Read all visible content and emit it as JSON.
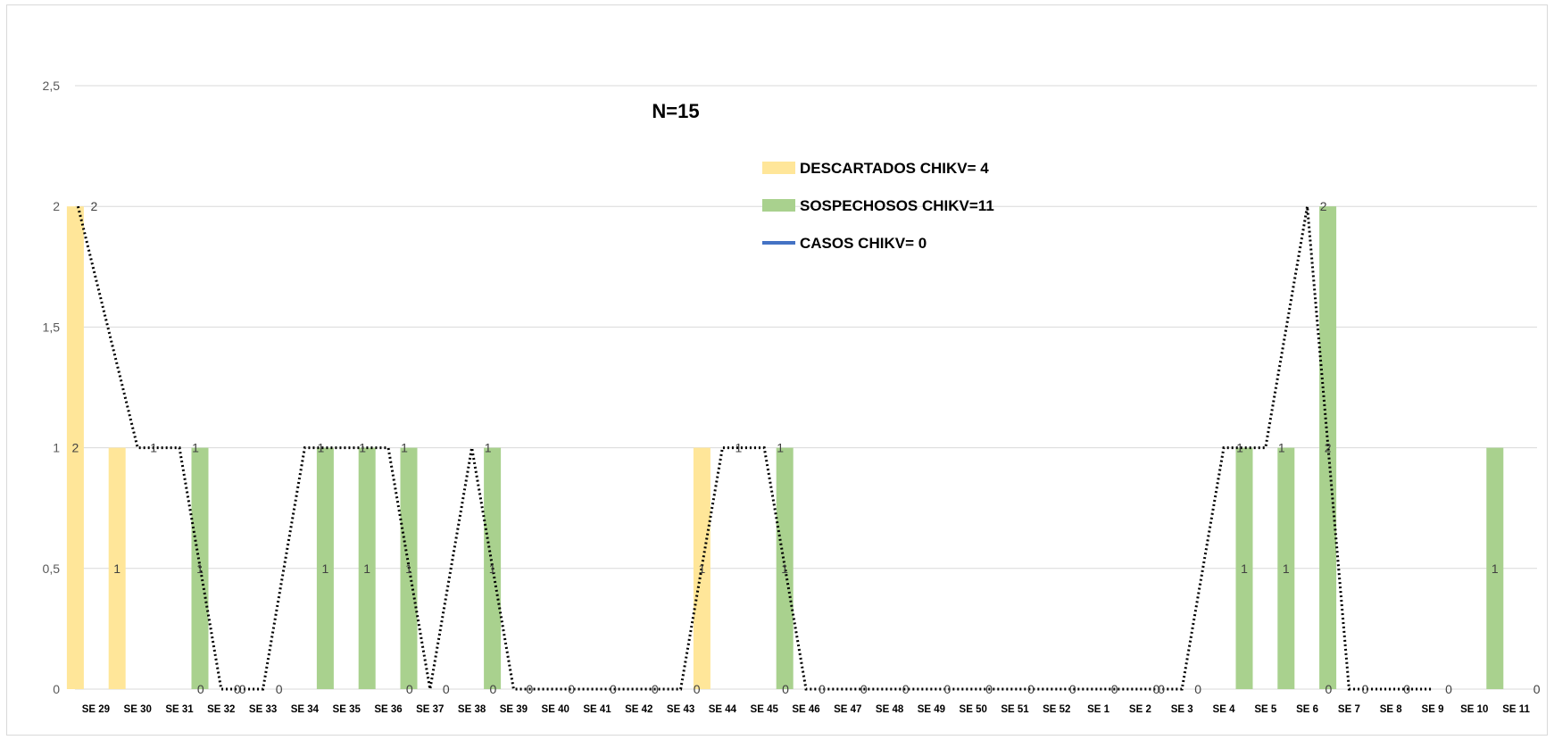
{
  "chart_data": {
    "type": "bar",
    "annotation": "N=15",
    "categories": [
      "SE 29",
      "SE 30",
      "SE 31",
      "SE 32",
      "SE 33",
      "SE 34",
      "SE 35",
      "SE 36",
      "SE 37",
      "SE 38",
      "SE 39",
      "SE 40",
      "SE 41",
      "SE 42",
      "SE 43",
      "SE 44",
      "SE 45",
      "SE 46",
      "SE 47",
      "SE 48",
      "SE 49",
      "SE 50",
      "SE 51",
      "SE 52",
      "SE 1",
      "SE 2",
      "SE 3",
      "SE 4",
      "SE 5",
      "SE 6",
      "SE 7",
      "SE 8",
      "SE 9",
      "SE 10",
      "SE 11"
    ],
    "series": [
      {
        "name": "DESCARTADOS CHIKV= 4",
        "type": "bar",
        "color": "#FFE699",
        "values": [
          2,
          1,
          0,
          0,
          0,
          0,
          0,
          0,
          0,
          0,
          0,
          0,
          0,
          0,
          0,
          1,
          0,
          0,
          0,
          0,
          0,
          0,
          0,
          0,
          0,
          0,
          0,
          0,
          0,
          0,
          0,
          0,
          0,
          0,
          0
        ]
      },
      {
        "name": "SOSPECHOSOS CHIKV=11",
        "type": "bar",
        "color": "#A9D18E",
        "values": [
          0,
          0,
          1,
          0,
          0,
          1,
          1,
          1,
          0,
          1,
          0,
          0,
          0,
          0,
          0,
          0,
          1,
          0,
          0,
          0,
          0,
          0,
          0,
          0,
          0,
          0,
          0,
          1,
          1,
          2,
          0,
          0,
          0,
          1,
          0
        ]
      },
      {
        "name": "CASOS CHIKV= 0",
        "type": "line",
        "color": "#4472C4",
        "values": [
          0,
          0,
          0,
          0,
          0,
          0,
          0,
          0,
          0,
          0,
          0,
          0,
          0,
          0,
          0,
          0,
          0,
          0,
          0,
          0,
          0,
          0,
          0,
          0,
          0,
          0,
          0,
          0,
          0,
          0,
          0,
          0,
          0,
          0,
          0
        ]
      },
      {
        "name": "",
        "type": "line",
        "style": "dotted",
        "color": "#000000",
        "values": [
          2,
          1,
          1,
          0,
          0,
          1,
          1,
          1,
          0,
          1,
          0,
          0,
          0,
          0,
          0,
          1,
          1,
          0,
          0,
          0,
          0,
          0,
          0,
          0,
          0,
          0,
          0,
          1,
          1,
          2,
          0,
          0,
          0,
          null,
          null
        ]
      }
    ],
    "y_ticks": [
      "0",
      "0,5",
      "1",
      "1,5",
      "2",
      "2,5"
    ],
    "ylim": [
      0,
      2.5
    ],
    "grid": true,
    "legend_position": "top-center"
  }
}
